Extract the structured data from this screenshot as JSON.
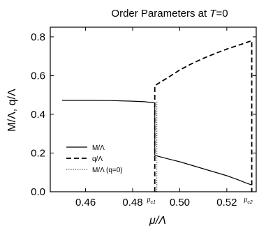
{
  "chart_data": {
    "type": "line",
    "title_prefix": "Order Parameters at ",
    "title_var": "T",
    "title_suffix": "=0",
    "xlabel": "μ/Λ",
    "ylabel": "M/Λ,  q/Λ",
    "xlim": [
      0.445,
      0.5325
    ],
    "ylim": [
      0.0,
      0.85
    ],
    "xticks": [
      0.46,
      0.48,
      0.5,
      0.52
    ],
    "xtick_labels": [
      "0.46",
      "0.48",
      "0.50",
      "0.52"
    ],
    "yticks": [
      0.0,
      0.2,
      0.4,
      0.6,
      0.8
    ],
    "ytick_labels": [
      "0.0",
      "0.2",
      "0.4",
      "0.6",
      "0.8"
    ],
    "annotations": [
      {
        "main": "μ",
        "sub": "c1",
        "x": 0.4894
      },
      {
        "main": "μ",
        "sub": "c2",
        "x": 0.5306
      }
    ],
    "series": [
      {
        "name": "M/Λ",
        "style": "solid",
        "x": [
          0.45,
          0.46,
          0.47,
          0.48,
          0.485,
          0.488,
          0.4894,
          0.4894,
          0.495,
          0.5,
          0.505,
          0.51,
          0.515,
          0.52,
          0.525,
          0.528,
          0.5306
        ],
        "y": [
          0.472,
          0.472,
          0.471,
          0.468,
          0.465,
          0.461,
          0.459,
          0.188,
          0.17,
          0.155,
          0.137,
          0.119,
          0.101,
          0.083,
          0.061,
          0.046,
          0.035
        ]
      },
      {
        "name": "q/Λ",
        "style": "dashed",
        "x": [
          0.4894,
          0.4894,
          0.495,
          0.5,
          0.505,
          0.51,
          0.515,
          0.52,
          0.525,
          0.5306,
          0.5306
        ],
        "y": [
          0.0,
          0.548,
          0.59,
          0.629,
          0.661,
          0.689,
          0.714,
          0.737,
          0.757,
          0.78,
          0.0
        ]
      },
      {
        "name": "M/Λ (q=0)",
        "style": "dotted",
        "x": [
          0.4903,
          0.4903
        ],
        "y": [
          0.465,
          0.0
        ]
      }
    ]
  }
}
